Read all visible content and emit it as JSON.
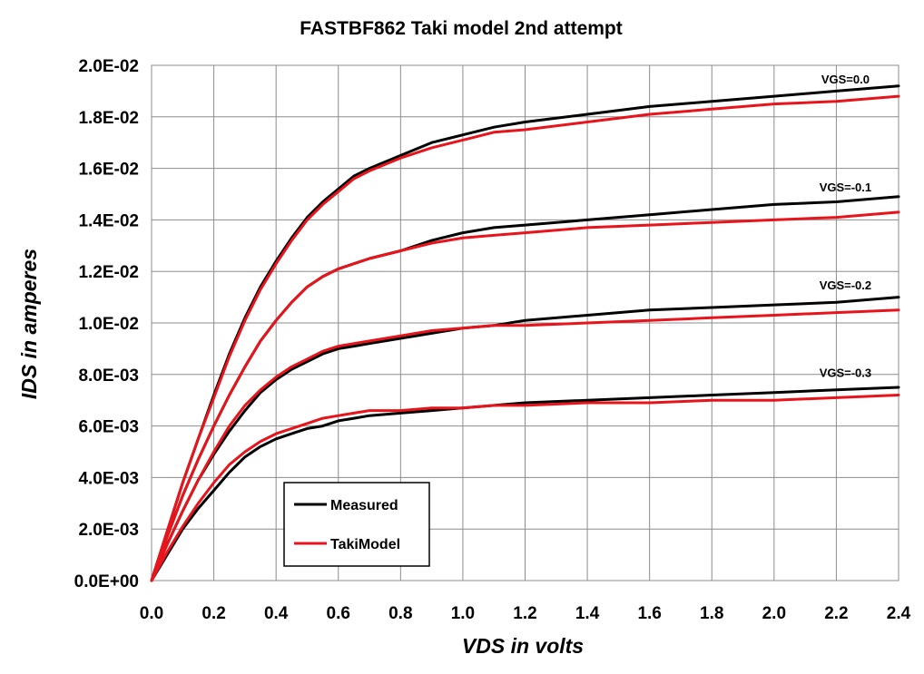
{
  "chart_data": {
    "type": "line",
    "title": "FASTBF862  Taki model   2nd attempt",
    "xlabel": "VDS  in volts",
    "ylabel": "IDS  in amperes",
    "xlim": [
      0,
      2.4
    ],
    "ylim": [
      0,
      0.02
    ],
    "x_ticks": [
      "0.0",
      "0.2",
      "0.4",
      "0.6",
      "0.8",
      "1.0",
      "1.2",
      "1.4",
      "1.6",
      "1.8",
      "2.0",
      "2.2",
      "2.4"
    ],
    "x_tick_values": [
      0,
      0.2,
      0.4,
      0.6,
      0.8,
      1.0,
      1.2,
      1.4,
      1.6,
      1.8,
      2.0,
      2.2,
      2.4
    ],
    "y_ticks": [
      "0.0E+00",
      "2.0E-03",
      "4.0E-03",
      "6.0E-03",
      "8.0E-03",
      "1.0E-02",
      "1.2E-02",
      "1.4E-02",
      "1.6E-02",
      "1.8E-02",
      "2.0E-02"
    ],
    "y_tick_values": [
      0,
      0.002,
      0.004,
      0.006,
      0.008,
      0.01,
      0.012,
      0.014,
      0.016,
      0.018,
      0.02
    ],
    "grid": true,
    "legend": {
      "placement": "lower-left",
      "entries": [
        {
          "label": "Measured",
          "color": "#000000"
        },
        {
          "label": "TakiModel",
          "color": "#e8141b"
        }
      ]
    },
    "x": [
      0,
      0.05,
      0.1,
      0.15,
      0.2,
      0.25,
      0.3,
      0.35,
      0.4,
      0.45,
      0.5,
      0.55,
      0.6,
      0.65,
      0.7,
      0.8,
      0.9,
      1.0,
      1.1,
      1.2,
      1.4,
      1.6,
      1.8,
      2.0,
      2.2,
      2.4
    ],
    "curves": [
      {
        "label": "VGS=0.0",
        "label_at": [
          2.2,
          0.0193
        ],
        "measured": [
          0,
          0.0019,
          0.0038,
          0.0055,
          0.0072,
          0.0088,
          0.0102,
          0.0114,
          0.0124,
          0.0133,
          0.0141,
          0.0147,
          0.0152,
          0.0157,
          0.016,
          0.0165,
          0.017,
          0.0173,
          0.0176,
          0.0178,
          0.0181,
          0.0184,
          0.0186,
          0.0188,
          0.019,
          0.0192
        ],
        "model": [
          0,
          0.0019,
          0.0038,
          0.0055,
          0.0071,
          0.0087,
          0.0101,
          0.0113,
          0.0123,
          0.0132,
          0.014,
          0.0146,
          0.0151,
          0.0156,
          0.0159,
          0.0164,
          0.0168,
          0.0171,
          0.0174,
          0.0175,
          0.0178,
          0.0181,
          0.0183,
          0.0185,
          0.0186,
          0.0188
        ]
      },
      {
        "label": "VGS=-0.1",
        "label_at": [
          2.2,
          0.0151
        ],
        "measured": [
          0,
          0.0017,
          0.0033,
          0.0047,
          0.006,
          0.0072,
          0.0083,
          0.0093,
          0.0101,
          0.0108,
          0.0114,
          0.0118,
          0.0121,
          0.0123,
          0.0125,
          0.0128,
          0.0132,
          0.0135,
          0.0137,
          0.0138,
          0.014,
          0.0142,
          0.0144,
          0.0146,
          0.0147,
          0.0149
        ],
        "model": [
          0,
          0.0017,
          0.0033,
          0.0047,
          0.006,
          0.0072,
          0.0083,
          0.0093,
          0.0101,
          0.0108,
          0.0114,
          0.0118,
          0.0121,
          0.0123,
          0.0125,
          0.0128,
          0.0131,
          0.0133,
          0.0134,
          0.0135,
          0.0137,
          0.0138,
          0.0139,
          0.014,
          0.0141,
          0.0143
        ]
      },
      {
        "label": "VGS=-0.2",
        "label_at": [
          2.2,
          0.0113
        ],
        "measured": [
          0,
          0.0014,
          0.0027,
          0.0039,
          0.0049,
          0.0058,
          0.0066,
          0.0073,
          0.0078,
          0.0082,
          0.0085,
          0.0088,
          0.009,
          0.0091,
          0.0092,
          0.0094,
          0.0096,
          0.0098,
          0.0099,
          0.0101,
          0.0103,
          0.0105,
          0.0106,
          0.0107,
          0.0108,
          0.011
        ],
        "model": [
          0,
          0.0014,
          0.0027,
          0.0039,
          0.005,
          0.006,
          0.0068,
          0.0074,
          0.0079,
          0.0083,
          0.0086,
          0.0089,
          0.0091,
          0.0092,
          0.0093,
          0.0095,
          0.0097,
          0.0098,
          0.0099,
          0.0099,
          0.01,
          0.0101,
          0.0102,
          0.0103,
          0.0104,
          0.0105
        ]
      },
      {
        "label": "VGS=-0.3",
        "label_at": [
          2.2,
          0.0079
        ],
        "measured": [
          0,
          0.001,
          0.002,
          0.0028,
          0.0035,
          0.0042,
          0.0048,
          0.0052,
          0.0055,
          0.0057,
          0.0059,
          0.006,
          0.0062,
          0.0063,
          0.0064,
          0.0065,
          0.0066,
          0.0067,
          0.0068,
          0.0069,
          0.007,
          0.0071,
          0.0072,
          0.0073,
          0.0074,
          0.0075
        ],
        "model": [
          0,
          0.0011,
          0.0021,
          0.003,
          0.0038,
          0.0045,
          0.005,
          0.0054,
          0.0057,
          0.0059,
          0.0061,
          0.0063,
          0.0064,
          0.0065,
          0.0066,
          0.0066,
          0.0067,
          0.0067,
          0.0068,
          0.0068,
          0.0069,
          0.0069,
          0.007,
          0.007,
          0.0071,
          0.0072
        ]
      }
    ]
  }
}
